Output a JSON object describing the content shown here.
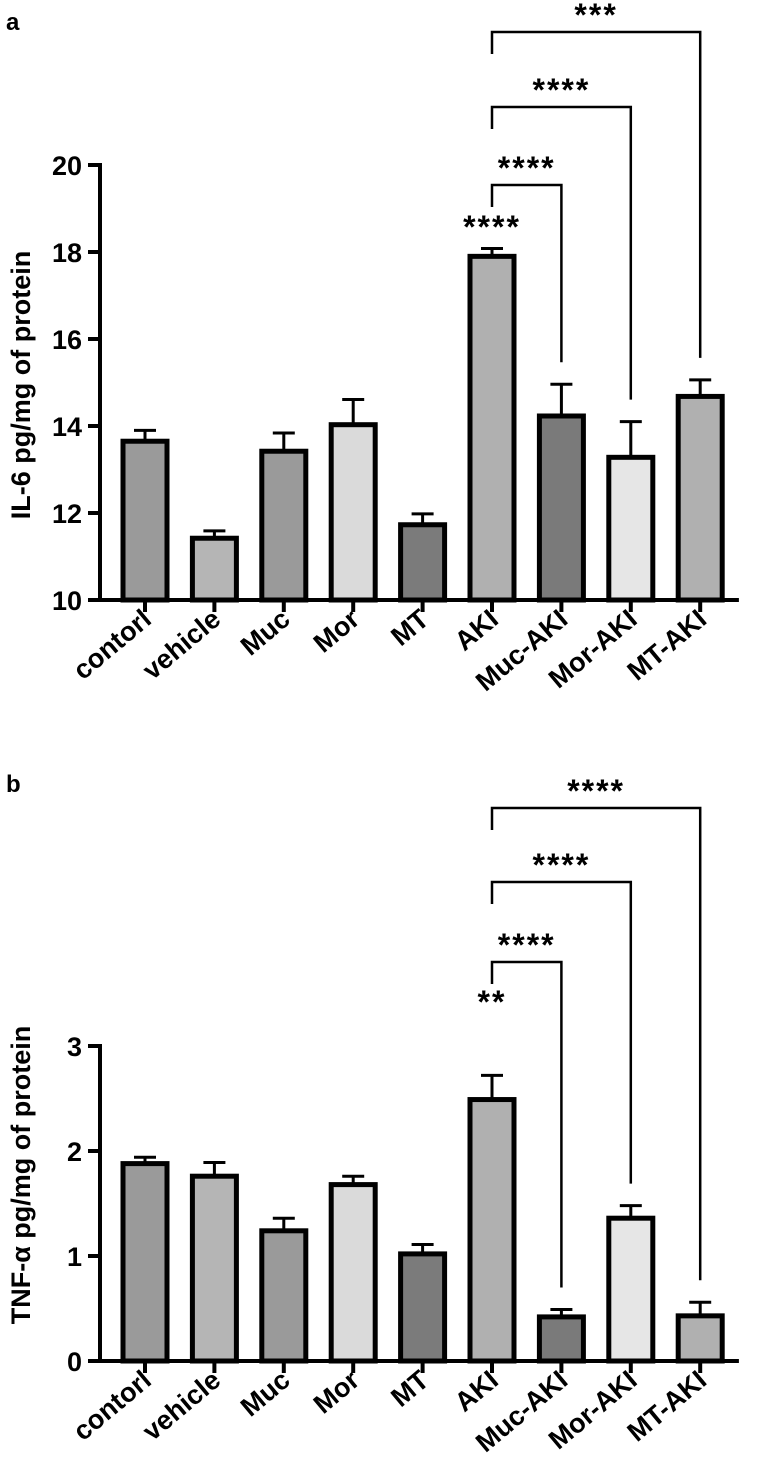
{
  "chart_data": [
    {
      "panel": "a",
      "type": "bar",
      "ylabel": "IL-6 pg/mg of protein",
      "ylim": [
        10,
        20
      ],
      "yticks": [
        10,
        12,
        14,
        16,
        18,
        20
      ],
      "categories": [
        "contorl",
        "vehicle",
        "Muc",
        "Mor",
        "MT",
        "AKI",
        "Muc-AKI",
        "Mor-AKI",
        "MT-AKI"
      ],
      "values": [
        13.65,
        11.42,
        13.42,
        14.03,
        11.73,
        17.9,
        14.23,
        13.28,
        14.68
      ],
      "errors": [
        0.25,
        0.17,
        0.42,
        0.58,
        0.25,
        0.18,
        0.73,
        0.82,
        0.38
      ],
      "colors": [
        "#9a9a9a",
        "#b5b5b5",
        "#9a9a9a",
        "#dadada",
        "#7b7b7b",
        "#b0b0b0",
        "#7a7a7a",
        "#e6e6e6",
        "#b0b0b0"
      ],
      "bar_annotation": {
        "category": "AKI",
        "text": "****"
      },
      "comparisons": [
        {
          "from": "AKI",
          "to": "Muc-AKI",
          "text": "****"
        },
        {
          "from": "AKI",
          "to": "Mor-AKI",
          "text": "****"
        },
        {
          "from": "AKI",
          "to": "MT-AKI",
          "text": "***"
        }
      ]
    },
    {
      "panel": "b",
      "type": "bar",
      "ylabel": "TNF-α pg/mg of protein",
      "ylim": [
        0,
        3
      ],
      "yticks": [
        0,
        1,
        2,
        3
      ],
      "categories": [
        "contorl",
        "vehicle",
        "Muc",
        "Mor",
        "MT",
        "AKI",
        "Muc-AKI",
        "Mor-AKI",
        "MT-AKI"
      ],
      "values": [
        1.88,
        1.76,
        1.24,
        1.68,
        1.02,
        2.49,
        0.42,
        1.36,
        0.43
      ],
      "errors": [
        0.06,
        0.13,
        0.12,
        0.08,
        0.09,
        0.23,
        0.07,
        0.12,
        0.13
      ],
      "colors": [
        "#9a9a9a",
        "#b5b5b5",
        "#9a9a9a",
        "#dadada",
        "#7b7b7b",
        "#b0b0b0",
        "#7a7a7a",
        "#e6e6e6",
        "#b0b0b0"
      ],
      "bar_annotation": {
        "category": "AKI",
        "text": "**"
      },
      "comparisons": [
        {
          "from": "AKI",
          "to": "Muc-AKI",
          "text": "****"
        },
        {
          "from": "AKI",
          "to": "Mor-AKI",
          "text": "****"
        },
        {
          "from": "AKI",
          "to": "MT-AKI",
          "text": "****"
        }
      ]
    }
  ]
}
